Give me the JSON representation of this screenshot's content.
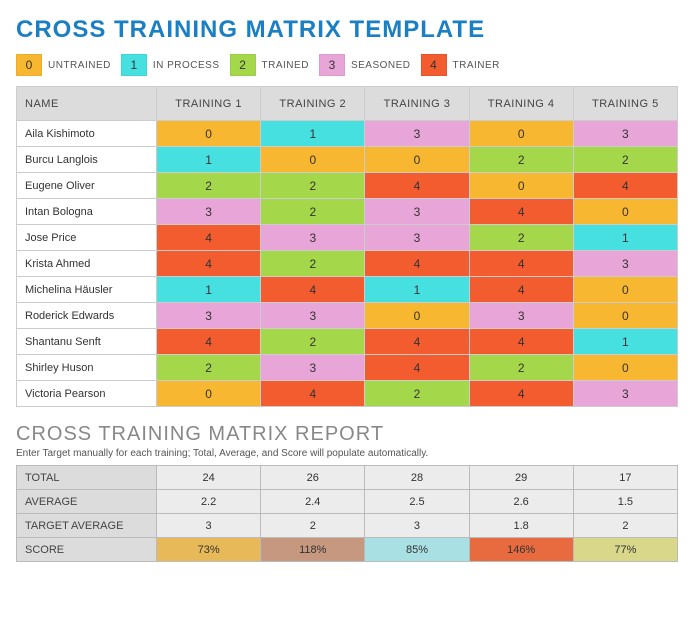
{
  "title": "CROSS TRAINING MATRIX TEMPLATE",
  "legend": [
    {
      "value": "0",
      "label": "UNTRAINED",
      "color": "#f7b731"
    },
    {
      "value": "1",
      "label": "IN PROCESS",
      "color": "#46e0e0"
    },
    {
      "value": "2",
      "label": "TRAINED",
      "color": "#a4d84a"
    },
    {
      "value": "3",
      "label": "SEASONED",
      "color": "#e8a5d8"
    },
    {
      "value": "4",
      "label": "TRAINER",
      "color": "#f25c2e"
    }
  ],
  "matrix": {
    "name_header": "NAME",
    "columns": [
      "TRAINING 1",
      "TRAINING 2",
      "TRAINING 3",
      "TRAINING 4",
      "TRAINING 5"
    ],
    "rows": [
      {
        "name": "Aila Kishimoto",
        "values": [
          0,
          1,
          3,
          0,
          3
        ]
      },
      {
        "name": "Burcu Langlois",
        "values": [
          1,
          0,
          0,
          2,
          2
        ]
      },
      {
        "name": "Eugene Oliver",
        "values": [
          2,
          2,
          4,
          0,
          4
        ]
      },
      {
        "name": "Intan Bologna",
        "values": [
          3,
          2,
          3,
          4,
          0
        ]
      },
      {
        "name": "Jose Price",
        "values": [
          4,
          3,
          3,
          2,
          1
        ]
      },
      {
        "name": "Krista Ahmed",
        "values": [
          4,
          2,
          4,
          4,
          3
        ]
      },
      {
        "name": "Michelina Häusler",
        "values": [
          1,
          4,
          1,
          4,
          0
        ]
      },
      {
        "name": "Roderick Edwards",
        "values": [
          3,
          3,
          0,
          3,
          0
        ]
      },
      {
        "name": "Shantanu Senft",
        "values": [
          4,
          2,
          4,
          4,
          1
        ]
      },
      {
        "name": "Shirley Huson",
        "values": [
          2,
          3,
          4,
          2,
          0
        ]
      },
      {
        "name": "Victoria Pearson",
        "values": [
          0,
          4,
          2,
          4,
          3
        ]
      }
    ]
  },
  "report": {
    "title": "CROSS TRAINING MATRIX REPORT",
    "subtitle": "Enter Target manually for each training; Total, Average, and Score will populate automatically.",
    "rows": [
      {
        "label": "TOTAL",
        "values": [
          "24",
          "26",
          "28",
          "29",
          "17"
        ]
      },
      {
        "label": "AVERAGE",
        "values": [
          "2.2",
          "2.4",
          "2.5",
          "2.6",
          "1.5"
        ]
      },
      {
        "label": "TARGET AVERAGE",
        "values": [
          "3",
          "2",
          "3",
          "1.8",
          "2"
        ]
      }
    ],
    "score": {
      "label": "SCORE",
      "values": [
        "73%",
        "118%",
        "85%",
        "146%",
        "77%"
      ],
      "colors": [
        "#e8b958",
        "#c6987f",
        "#a9e0e4",
        "#e86a3f",
        "#d9d88a"
      ]
    }
  }
}
